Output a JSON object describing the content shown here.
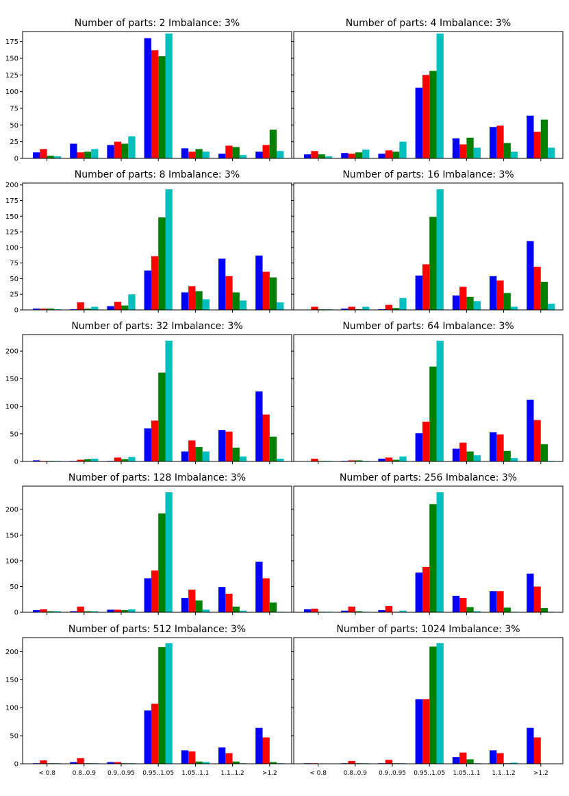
{
  "colors": [
    "#0000ff",
    "#ff0000",
    "#008000",
    "#00bfbf"
  ],
  "categories": [
    "< 0.8",
    "0.8..0.9",
    "0.9..0.95",
    "0.95..1.05",
    "1.05..1.1",
    "1.1..1.2",
    ">1.2"
  ],
  "chart_data": [
    {
      "type": "bar",
      "title": "Number of parts: 2   Imbalance: 3%",
      "ylim": [
        0,
        190
      ],
      "yticks": [
        0,
        25,
        50,
        75,
        100,
        125,
        150,
        175
      ],
      "series": [
        {
          "values": [
            9,
            22,
            20,
            180,
            15,
            7,
            10
          ]
        },
        {
          "values": [
            14,
            9,
            25,
            162,
            10,
            19,
            20
          ]
        },
        {
          "values": [
            4,
            10,
            22,
            153,
            14,
            17,
            43
          ]
        },
        {
          "values": [
            3,
            14,
            33,
            187,
            10,
            5,
            11
          ]
        }
      ]
    },
    {
      "type": "bar",
      "title": "Number of parts: 4   Imbalance: 3%",
      "ylim": [
        0,
        190
      ],
      "yticks": [
        0,
        25,
        50,
        75,
        100,
        125,
        150,
        175
      ],
      "series": [
        {
          "values": [
            6,
            8,
            7,
            106,
            30,
            47,
            64
          ]
        },
        {
          "values": [
            11,
            7,
            12,
            125,
            21,
            49,
            40
          ]
        },
        {
          "values": [
            6,
            9,
            10,
            131,
            31,
            23,
            58
          ]
        },
        {
          "values": [
            3,
            13,
            25,
            187,
            16,
            10,
            16
          ]
        }
      ]
    },
    {
      "type": "bar",
      "title": "Number of parts: 8   Imbalance: 3%",
      "ylim": [
        0,
        203
      ],
      "yticks": [
        0,
        25,
        50,
        75,
        100,
        125,
        150,
        175,
        200
      ],
      "series": [
        {
          "values": [
            2,
            1,
            6,
            63,
            28,
            82,
            87
          ]
        },
        {
          "values": [
            2,
            12,
            13,
            86,
            38,
            54,
            61
          ]
        },
        {
          "values": [
            2,
            2,
            7,
            148,
            30,
            28,
            52
          ]
        },
        {
          "values": [
            1,
            5,
            25,
            193,
            17,
            15,
            12
          ]
        }
      ]
    },
    {
      "type": "bar",
      "title": "Number of parts: 16   Imbalance: 3%",
      "ylim": [
        0,
        203
      ],
      "yticks": [
        0,
        25,
        50,
        75,
        100,
        125,
        150,
        175,
        200
      ],
      "series": [
        {
          "values": [
            0,
            2,
            1,
            55,
            23,
            54,
            110
          ]
        },
        {
          "values": [
            5,
            5,
            8,
            73,
            37,
            47,
            69
          ]
        },
        {
          "values": [
            1,
            1,
            3,
            149,
            21,
            27,
            45
          ]
        },
        {
          "values": [
            1,
            5,
            19,
            193,
            14,
            5,
            10
          ]
        }
      ]
    },
    {
      "type": "bar",
      "title": "Number of parts: 32   Imbalance: 3%",
      "ylim": [
        0,
        230
      ],
      "yticks": [
        0,
        50,
        100,
        150,
        200
      ],
      "series": [
        {
          "values": [
            2,
            1,
            1,
            60,
            18,
            57,
            127
          ]
        },
        {
          "values": [
            1,
            3,
            7,
            74,
            38,
            54,
            85
          ]
        },
        {
          "values": [
            1,
            4,
            4,
            161,
            26,
            25,
            45
          ]
        },
        {
          "values": [
            1,
            5,
            8,
            219,
            18,
            9,
            5
          ]
        }
      ]
    },
    {
      "type": "bar",
      "title": "Number of parts: 64   Imbalance: 3%",
      "ylim": [
        0,
        230
      ],
      "yticks": [
        0,
        50,
        100,
        150,
        200
      ],
      "series": [
        {
          "values": [
            0,
            1,
            5,
            51,
            23,
            53,
            112
          ]
        },
        {
          "values": [
            5,
            2,
            7,
            72,
            34,
            49,
            75
          ]
        },
        {
          "values": [
            1,
            2,
            3,
            172,
            18,
            19,
            31
          ]
        },
        {
          "values": [
            1,
            1,
            9,
            219,
            11,
            6,
            1
          ]
        }
      ]
    },
    {
      "type": "bar",
      "title": "Number of parts: 128   Imbalance: 3%",
      "ylim": [
        0,
        245
      ],
      "yticks": [
        0,
        50,
        100,
        150,
        200
      ],
      "series": [
        {
          "values": [
            4,
            2,
            5,
            66,
            28,
            49,
            98
          ]
        },
        {
          "values": [
            6,
            11,
            5,
            81,
            44,
            36,
            66
          ]
        },
        {
          "values": [
            2,
            2,
            4,
            192,
            23,
            11,
            19
          ]
        },
        {
          "values": [
            2,
            2,
            6,
            233,
            5,
            3,
            1
          ]
        }
      ]
    },
    {
      "type": "bar",
      "title": "Number of parts: 256   Imbalance: 3%",
      "ylim": [
        0,
        245
      ],
      "yticks": [
        0,
        50,
        100,
        150,
        200
      ],
      "series": [
        {
          "values": [
            6,
            3,
            4,
            77,
            32,
            41,
            75
          ]
        },
        {
          "values": [
            7,
            11,
            12,
            88,
            28,
            41,
            50
          ]
        },
        {
          "values": [
            1,
            2,
            1,
            210,
            10,
            9,
            8
          ]
        },
        {
          "values": [
            1,
            1,
            3,
            233,
            2,
            1,
            1
          ]
        }
      ]
    },
    {
      "type": "bar",
      "title": "Number of parts: 512   Imbalance: 3%",
      "ylim": [
        0,
        225
      ],
      "yticks": [
        0,
        50,
        100,
        150,
        200
      ],
      "series": [
        {
          "values": [
            1,
            3,
            3,
            95,
            24,
            29,
            64
          ]
        },
        {
          "values": [
            6,
            10,
            3,
            107,
            22,
            19,
            47
          ]
        },
        {
          "values": [
            1,
            1,
            1,
            208,
            4,
            4,
            3
          ]
        },
        {
          "values": [
            1,
            1,
            1,
            215,
            3,
            1,
            1
          ]
        }
      ]
    },
    {
      "type": "bar",
      "title": "Number of parts: 1024   Imbalance: 3%",
      "ylim": [
        0,
        225
      ],
      "yticks": [
        0,
        50,
        100,
        150,
        200
      ],
      "series": [
        {
          "values": [
            1,
            1,
            1,
            115,
            12,
            24,
            64
          ]
        },
        {
          "values": [
            1,
            5,
            7,
            115,
            20,
            19,
            47
          ]
        },
        {
          "values": [
            0,
            1,
            1,
            209,
            8,
            1,
            0
          ]
        },
        {
          "values": [
            0,
            1,
            1,
            215,
            1,
            2,
            0
          ]
        }
      ]
    }
  ]
}
